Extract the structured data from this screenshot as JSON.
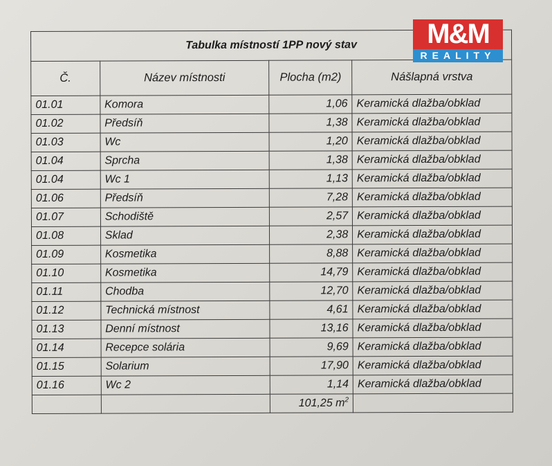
{
  "logo": {
    "top": "M&M",
    "bottom": "REALITY",
    "colors": {
      "red": "#d8302e",
      "blue": "#2d8fd0"
    }
  },
  "table": {
    "title": "Tabulka místností 1PP nový stav",
    "headers": [
      "Č.",
      "Název místnosti",
      "Plocha (m2)",
      "Nášlapná vrstva"
    ],
    "rows": [
      [
        "01.01",
        "Komora",
        "1,06",
        "Keramická dlažba/obklad"
      ],
      [
        "01.02",
        "Předsíň",
        "1,38",
        "Keramická dlažba/obklad"
      ],
      [
        "01.03",
        "Wc",
        "1,20",
        "Keramická dlažba/obklad"
      ],
      [
        "01.04",
        "Sprcha",
        "1,38",
        "Keramická dlažba/obklad"
      ],
      [
        "01.04",
        "Wc 1",
        "1,13",
        "Keramická dlažba/obklad"
      ],
      [
        "01.06",
        "Předsíň",
        "7,28",
        "Keramická dlažba/obklad"
      ],
      [
        "01.07",
        "Schodiště",
        "2,57",
        "Keramická dlažba/obklad"
      ],
      [
        "01.08",
        "Sklad",
        "2,38",
        "Keramická dlažba/obklad"
      ],
      [
        "01.09",
        "Kosmetika",
        "8,88",
        "Keramická dlažba/obklad"
      ],
      [
        "01.10",
        "Kosmetika",
        "14,79",
        "Keramická dlažba/obklad"
      ],
      [
        "01.11",
        "Chodba",
        "12,70",
        "Keramická dlažba/obklad"
      ],
      [
        "01.12",
        "Technická místnost",
        "4,61",
        "Keramická dlažba/obklad"
      ],
      [
        "01.13",
        "Denní místnost",
        "13,16",
        "Keramická dlažba/obklad"
      ],
      [
        "01.14",
        "Recepce solária",
        "9,69",
        "Keramická dlažba/obklad"
      ],
      [
        "01.15",
        "Solarium",
        "17,90",
        "Keramická dlažba/obklad"
      ],
      [
        "01.16",
        "Wc 2",
        "1,14",
        "Keramická dlažba/obklad"
      ]
    ],
    "total": {
      "value": "101,25 m",
      "unit_sup": "2"
    }
  }
}
